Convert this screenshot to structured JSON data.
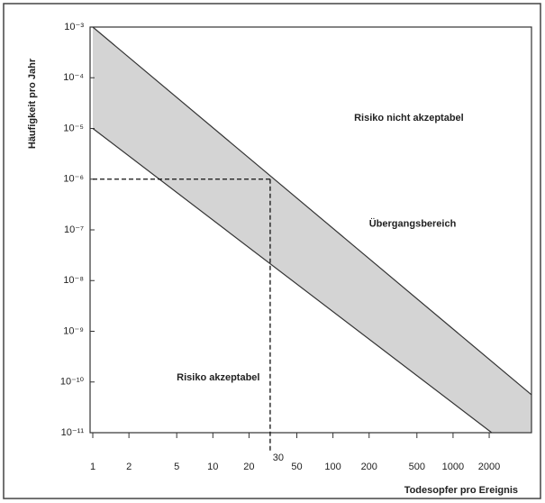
{
  "chart_data": {
    "type": "risk-band",
    "y_label": "Häufigkeit pro Jahr",
    "x_label": "Todesopfer pro Ereignis",
    "xscale": "log",
    "yscale": "log",
    "xlim": [
      1,
      4500
    ],
    "ylim": [
      1e-11,
      0.001
    ],
    "xticks": [
      1,
      2,
      5,
      10,
      20,
      50,
      100,
      200,
      500,
      1000,
      2000
    ],
    "yticks": [
      {
        "value": 0.001,
        "label": "10⁻³"
      },
      {
        "value": 0.0001,
        "label": "10⁻⁴"
      },
      {
        "value": 1e-05,
        "label": "10⁻⁵"
      },
      {
        "value": 1e-06,
        "label": "10⁻⁶"
      },
      {
        "value": 1e-07,
        "label": "10⁻⁷"
      },
      {
        "value": 1e-08,
        "label": "10⁻⁸"
      },
      {
        "value": 1e-09,
        "label": "10⁻⁹"
      },
      {
        "value": 1e-10,
        "label": "10⁻¹⁰"
      },
      {
        "value": 1e-11,
        "label": "10⁻¹¹"
      }
    ],
    "lines": [
      {
        "x": [
          1,
          4500
        ],
        "y": [
          0.001,
          5.6e-11
        ]
      },
      {
        "x": [
          1,
          2100
        ],
        "y": [
          1e-05,
          1e-11
        ]
      }
    ],
    "band_color": "#d4d4d4",
    "line_color": "#333333",
    "reference": {
      "x": 30,
      "y": 1e-06,
      "label": "30"
    },
    "annotations": [
      {
        "text": "Risiko nicht akzeptabel",
        "x": 150,
        "y": 1.6e-05
      },
      {
        "text": "Übergangsbereich",
        "x": 200,
        "y": 1.3e-07
      },
      {
        "text": "Risiko akzeptabel",
        "x": 5,
        "y": 1.2e-10
      }
    ]
  }
}
